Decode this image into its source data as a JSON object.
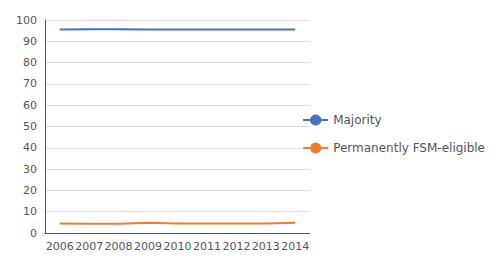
{
  "chart_data": {
    "type": "line",
    "categories": [
      "2006",
      "2007",
      "2008",
      "2009",
      "2010",
      "2011",
      "2012",
      "2013",
      "2014"
    ],
    "series": [
      {
        "name": "Majority",
        "color": "#4472C4",
        "values": [
          95.5,
          95.7,
          95.6,
          95.5,
          95.5,
          95.5,
          95.5,
          95.5,
          95.5
        ]
      },
      {
        "name": "Permanently FSM-eligible",
        "color": "#ED7D31",
        "values": [
          4.5,
          4.3,
          4.4,
          4.8,
          4.5,
          4.5,
          4.5,
          4.5,
          4.8
        ]
      }
    ],
    "ylim": [
      0,
      100
    ],
    "yticks": [
      0,
      10,
      20,
      30,
      40,
      50,
      60,
      70,
      80,
      90,
      100
    ],
    "grid": true,
    "legend": "right"
  }
}
